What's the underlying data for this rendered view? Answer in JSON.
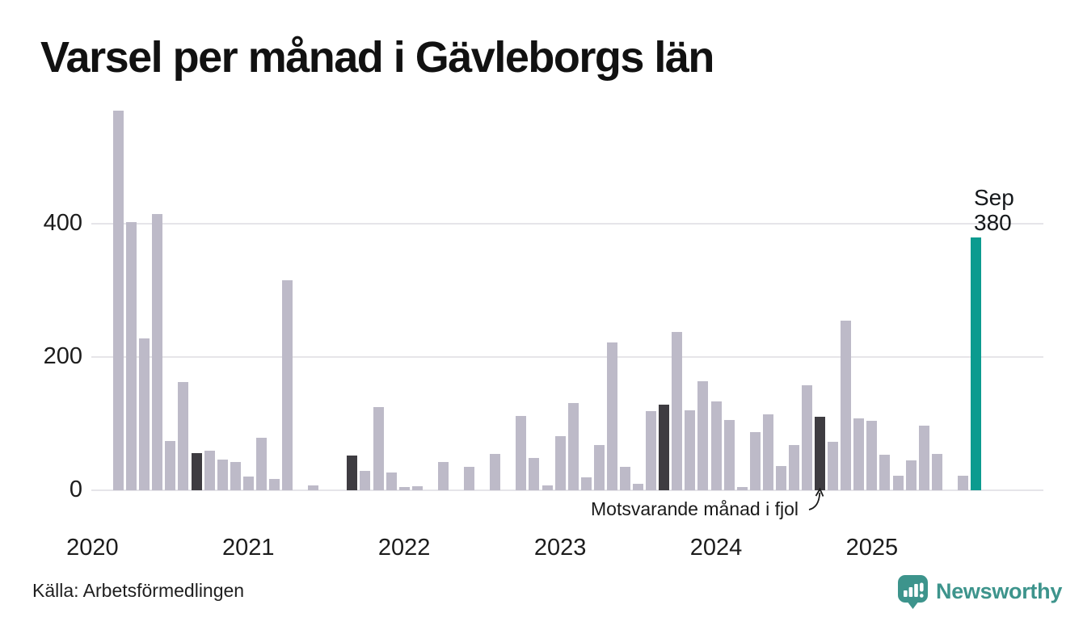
{
  "title": "Varsel per månad i Gävleborgs län",
  "source": "Källa: Arbetsförmedlingen",
  "annotation": {
    "text": "Motsvarande månad i fjol"
  },
  "peak_label": {
    "month": "Sep",
    "value": "380"
  },
  "logo": {
    "name": "Newsworthy"
  },
  "colors": {
    "bar_default": "#bdbac8",
    "bar_previous_september": "#3e3c41",
    "bar_current": "#0c9b8f",
    "gridline": "#e6e5e9",
    "text": "#1c1c1c",
    "logo_teal": "#3d948c"
  },
  "chart_data": {
    "type": "bar",
    "title": "Varsel per månad i Gävleborgs län",
    "ylabel": "",
    "xlabel": "",
    "ylim": [
      0,
      600
    ],
    "y_gridlines": [
      0,
      200,
      400
    ],
    "y_tick_labels": [
      "0",
      "200",
      "400"
    ],
    "x_tick_labels": [
      "2020",
      "2021",
      "2022",
      "2023",
      "2024",
      "2025"
    ],
    "legend": "none",
    "series_name": "Varsel per månad",
    "months_per_year": 12,
    "monthly_values": {
      "2020": [
        0,
        0,
        570,
        403,
        228,
        414,
        74,
        163,
        56,
        60,
        46,
        42
      ],
      "2021": [
        21,
        79,
        17,
        315,
        0,
        7,
        0,
        0,
        52,
        29,
        125,
        27
      ],
      "2022": [
        5,
        6,
        0,
        42,
        0,
        35,
        0,
        54,
        0,
        112,
        49,
        7
      ],
      "2023": [
        81,
        131,
        19,
        68,
        222,
        35,
        10,
        119,
        129,
        237,
        120,
        164
      ],
      "2024": [
        133,
        105,
        5,
        87,
        114,
        36,
        68,
        157,
        110,
        73,
        255,
        108
      ],
      "2025": [
        104,
        53,
        22,
        45,
        97,
        54,
        0,
        22,
        380
      ]
    },
    "highlight": {
      "month": "2025-09",
      "value": 380,
      "label": "Sep 380"
    },
    "dark_months": [
      "2020-09",
      "2021-09",
      "2022-09",
      "2023-09",
      "2024-09"
    ],
    "annotation": {
      "text": "Motsvarande månad i fjol",
      "points_to": "2024-09"
    }
  }
}
